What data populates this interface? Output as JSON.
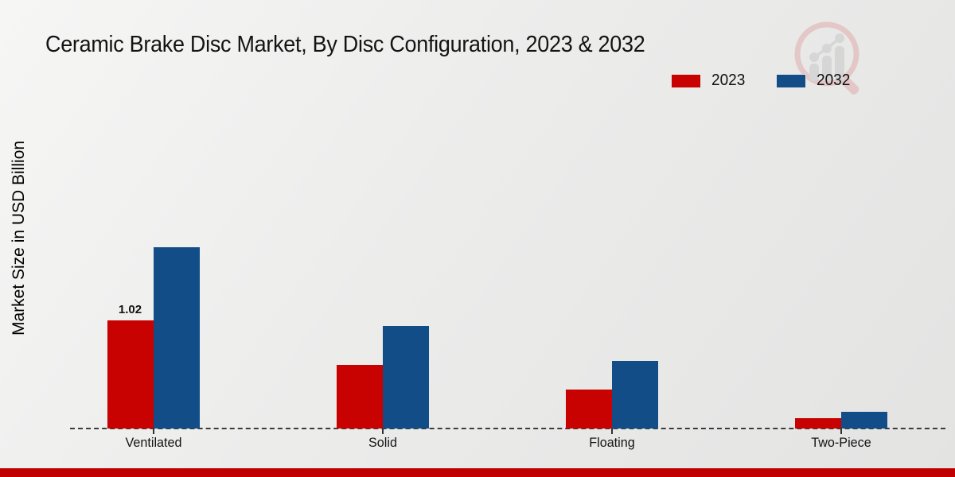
{
  "page": {
    "background_top": "#f6f6f5",
    "background_bottom": "#e3e3e2",
    "footer_bar_color": "#c00000"
  },
  "watermark": {
    "icon": "magnifier-growth-logo",
    "circle_color": "#e0adad",
    "bars_color": "#c9c9c9"
  },
  "chart_data": {
    "type": "bar",
    "title": "Ceramic Brake Disc Market, By Disc Configuration, 2023 & 2032",
    "xlabel": "",
    "ylabel": "Market Size in USD Billion",
    "categories": [
      "Ventilated",
      "Solid",
      "Floating",
      "Two-Piece"
    ],
    "series": [
      {
        "name": "2023",
        "color": "#c80101",
        "values": [
          1.02,
          0.6,
          0.37,
          0.1
        ]
      },
      {
        "name": "2032",
        "color": "#124d88",
        "values": [
          1.71,
          0.97,
          0.64,
          0.16
        ]
      }
    ],
    "annotations": [
      {
        "category": "Ventilated",
        "series": "2023",
        "text": "1.02"
      }
    ],
    "ylim": [
      0,
      1.8
    ],
    "grid": false,
    "legend_position": "top-right",
    "baseline_style": "dashed",
    "y_axis_ticks_visible": false
  }
}
